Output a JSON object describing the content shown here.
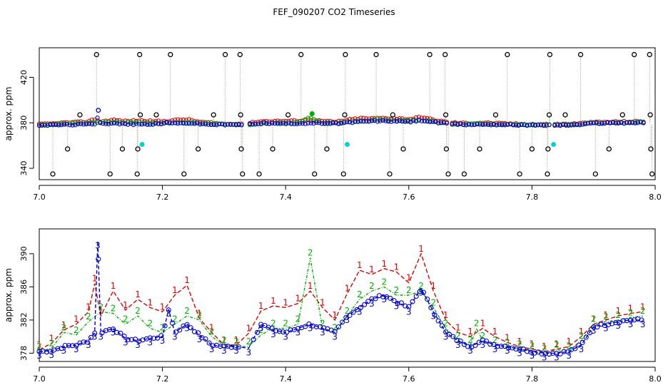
{
  "title": "FEF_090207  CO2 Timeseries",
  "colors": {
    "inlet1": "#e00000",
    "inlet2": "#00b000",
    "inlet3": "#0000d0",
    "qc": "#000000",
    "cal": "#00d0d0",
    "axis": "#000000"
  },
  "chart_data": [
    {
      "type": "scatter",
      "panel": "top",
      "ylabel": "approx. ppm",
      "xlim": [
        7.0,
        8.0
      ],
      "ylim": [
        330,
        446
      ],
      "xticks": [
        7.0,
        7.2,
        7.4,
        7.6,
        7.8,
        8.0
      ],
      "xtick_labels": [
        "7.0",
        "7.2",
        "7.4",
        "7.6",
        "7.8",
        "8.0"
      ],
      "yticks": [
        340,
        380,
        420
      ],
      "ytick_labels": [
        "340",
        "380",
        "420"
      ],
      "flagged_high_x": [
        7.093,
        7.163,
        7.213,
        7.302,
        7.326,
        7.425,
        7.497,
        7.547,
        7.634,
        7.659,
        7.76,
        7.829,
        7.879,
        7.966,
        7.991
      ],
      "flagged_high_y": 440,
      "flagged_low_x": [
        7.022,
        7.115,
        7.159,
        7.235,
        7.33,
        7.357,
        7.447,
        7.494,
        7.569,
        7.664,
        7.69,
        7.78,
        7.825,
        7.903,
        7.995
      ],
      "flagged_low_y": 335,
      "flagged_mid_x": [
        7.046,
        7.135,
        7.16,
        7.258,
        7.328,
        7.379,
        7.467,
        7.591,
        7.661,
        7.715,
        7.8,
        7.826,
        7.925,
        7.993
      ],
      "flagged_mid_y": 357,
      "flagged_plus_x": [
        7.066,
        7.164,
        7.19,
        7.283,
        7.327,
        7.404,
        7.496,
        7.574,
        7.66,
        7.741,
        7.828,
        7.854,
        7.947,
        7.992
      ],
      "flagged_plus_y": 387,
      "calibration_points": [
        {
          "x": 7.096,
          "y": 391,
          "series": 3
        },
        {
          "x": 7.167,
          "y": 361,
          "series": "cal"
        },
        {
          "x": 7.443,
          "y": 388,
          "series": 2
        },
        {
          "x": 7.5,
          "y": 361,
          "series": "cal"
        },
        {
          "x": 7.835,
          "y": 361,
          "series": "cal"
        }
      ]
    },
    {
      "type": "line",
      "panel": "bottom",
      "ylabel": "approx. ppm",
      "xlim": [
        7.0,
        8.0
      ],
      "ylim": [
        377,
        393
      ],
      "xticks": [
        7.0,
        7.2,
        7.4,
        7.6,
        7.8,
        8.0
      ],
      "xtick_labels": [
        "7.0",
        "7.2",
        "7.4",
        "7.6",
        "7.8",
        "8.0"
      ],
      "yticks": [
        378,
        382,
        386,
        390
      ],
      "ytick_labels": [
        "378",
        "382",
        "386",
        "390"
      ],
      "series": [
        {
          "name": "1",
          "x": [
            7.0,
            7.02,
            7.04,
            7.06,
            7.08,
            7.09,
            7.1,
            7.12,
            7.14,
            7.16,
            7.18,
            7.2,
            7.22,
            7.24,
            7.26,
            7.28,
            7.3,
            7.32,
            7.34,
            7.36,
            7.38,
            7.4,
            7.42,
            7.44,
            7.46,
            7.48,
            7.5,
            7.52,
            7.54,
            7.56,
            7.58,
            7.6,
            7.62,
            7.64,
            7.66,
            7.68,
            7.7,
            7.72,
            7.74,
            7.76,
            7.78,
            7.8,
            7.82,
            7.84,
            7.86,
            7.88,
            7.9,
            7.92,
            7.94,
            7.96,
            7.98
          ],
          "values": [
            378.4,
            379.2,
            380.8,
            381.5,
            383.0,
            386.4,
            382.5,
            385.5,
            383.2,
            384.5,
            383.5,
            383.0,
            385.0,
            386.2,
            382.2,
            380.5,
            379.0,
            379.0,
            380.4,
            383.1,
            383.7,
            383.5,
            384.0,
            385.5,
            383.5,
            382.0,
            385.2,
            388.0,
            387.5,
            388.2,
            387.8,
            386.5,
            390.0,
            385.5,
            382.0,
            380.5,
            380.0,
            381.0,
            380.0,
            379.3,
            378.8,
            378.5,
            378.2,
            378.5,
            378.8,
            380.0,
            381.5,
            382.0,
            382.5,
            382.8,
            383.0
          ]
        },
        {
          "name": "2",
          "x": [
            7.0,
            7.02,
            7.04,
            7.06,
            7.08,
            7.1,
            7.12,
            7.14,
            7.16,
            7.18,
            7.2,
            7.22,
            7.24,
            7.26,
            7.28,
            7.3,
            7.32,
            7.34,
            7.36,
            7.38,
            7.4,
            7.42,
            7.44,
            7.46,
            7.48,
            7.5,
            7.52,
            7.54,
            7.56,
            7.58,
            7.6,
            7.62,
            7.64,
            7.66,
            7.68,
            7.7,
            7.71,
            7.72,
            7.74,
            7.76,
            7.78,
            7.8,
            7.82,
            7.84,
            7.86,
            7.88,
            7.9,
            7.92,
            7.94,
            7.96,
            7.98
          ],
          "values": [
            378.2,
            378.6,
            380.5,
            380.2,
            381.8,
            383.0,
            382.8,
            381.5,
            382.5,
            381.0,
            380.5,
            381.5,
            382.5,
            382.0,
            380.0,
            379.0,
            378.8,
            378.8,
            380.2,
            381.0,
            381.0,
            381.5,
            389.5,
            381.0,
            380.5,
            382.5,
            384.5,
            385.5,
            386.0,
            385.0,
            385.0,
            385.5,
            383.5,
            381.0,
            379.5,
            379.0,
            381.0,
            379.5,
            379.0,
            378.7,
            378.5,
            378.3,
            378.0,
            378.4,
            378.3,
            379.5,
            381.5,
            381.8,
            382.0,
            382.3,
            382.5
          ]
        },
        {
          "name": "3",
          "x": [
            7.0,
            7.02,
            7.04,
            7.06,
            7.08,
            7.09,
            7.095,
            7.1,
            7.12,
            7.14,
            7.16,
            7.18,
            7.2,
            7.21,
            7.22,
            7.24,
            7.26,
            7.28,
            7.3,
            7.32,
            7.34,
            7.36,
            7.38,
            7.4,
            7.42,
            7.44,
            7.46,
            7.48,
            7.5,
            7.52,
            7.54,
            7.56,
            7.58,
            7.6,
            7.62,
            7.64,
            7.66,
            7.68,
            7.7,
            7.72,
            7.74,
            7.76,
            7.78,
            7.8,
            7.82,
            7.84,
            7.86,
            7.88,
            7.9,
            7.92,
            7.94,
            7.96,
            7.98
          ],
          "values": [
            378.2,
            378.3,
            378.8,
            379.0,
            379.5,
            380.5,
            391.5,
            380.5,
            381.0,
            379.8,
            379.5,
            379.8,
            380.0,
            383.3,
            380.5,
            381.5,
            380.2,
            379.0,
            378.8,
            378.8,
            378.6,
            381.5,
            380.8,
            380.5,
            381.0,
            381.5,
            381.0,
            380.5,
            382.5,
            383.5,
            384.5,
            385.0,
            384.2,
            383.5,
            385.8,
            383.0,
            380.5,
            379.5,
            378.8,
            379.5,
            379.0,
            378.8,
            378.5,
            378.2,
            378.0,
            378.0,
            378.2,
            379.0,
            381.2,
            381.5,
            381.8,
            382.0,
            382.0
          ]
        }
      ]
    }
  ]
}
